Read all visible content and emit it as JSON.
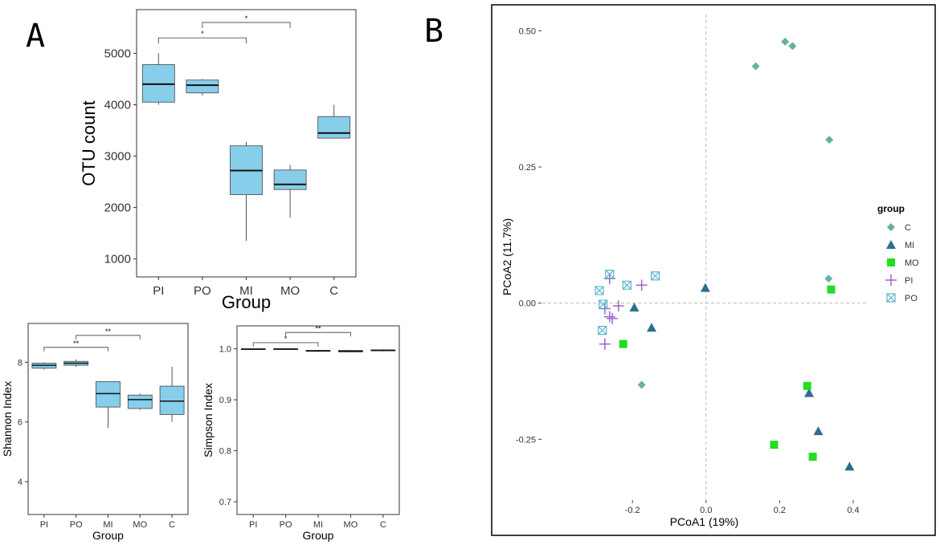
{
  "panel_labels": [
    "A",
    "B"
  ],
  "chart_data": [
    {
      "type": "box",
      "id": "otu",
      "categories": [
        "PI",
        "PO",
        "MI",
        "MO",
        "C"
      ],
      "xlabel": "Group",
      "ylabel": "OTU count",
      "ylim": [
        650,
        5850
      ],
      "yticks": [
        1000,
        2000,
        3000,
        4000,
        5000
      ],
      "boxes": [
        {
          "min": 4000,
          "q1": 4050,
          "median": 4400,
          "q3": 4780,
          "max": 5000
        },
        {
          "min": 4180,
          "q1": 4230,
          "median": 4380,
          "q3": 4480,
          "max": 4500
        },
        {
          "min": 1350,
          "q1": 2250,
          "median": 2720,
          "q3": 3200,
          "max": 3280
        },
        {
          "min": 1800,
          "q1": 2350,
          "median": 2450,
          "q3": 2730,
          "max": 2830
        },
        {
          "min": 3350,
          "q1": 3350,
          "median": 3450,
          "q3": 3770,
          "max": 4000
        }
      ],
      "significance": [
        {
          "from": "PI",
          "to": "MI",
          "label": "*",
          "y": 5300
        },
        {
          "from": "PO",
          "to": "MO",
          "label": "*",
          "y": 5600
        }
      ]
    },
    {
      "type": "box",
      "id": "shannon",
      "categories": [
        "PI",
        "PO",
        "MI",
        "MO",
        "C"
      ],
      "xlabel": "Group",
      "ylabel": "Shannon Index",
      "ylim": [
        2.9,
        9.3
      ],
      "yticks": [
        4,
        6,
        8
      ],
      "boxes": [
        {
          "min": 7.75,
          "q1": 7.8,
          "median": 7.9,
          "q3": 7.97,
          "max": 8.0
        },
        {
          "min": 7.85,
          "q1": 7.9,
          "median": 7.97,
          "q3": 8.03,
          "max": 8.1
        },
        {
          "min": 5.8,
          "q1": 6.5,
          "median": 6.95,
          "q3": 7.35,
          "max": 7.35
        },
        {
          "min": 6.4,
          "q1": 6.45,
          "median": 6.75,
          "q3": 6.9,
          "max": 6.95
        },
        {
          "min": 6.0,
          "q1": 6.25,
          "median": 6.7,
          "q3": 7.2,
          "max": 7.85
        }
      ],
      "significance": [
        {
          "from": "PI",
          "to": "MI",
          "label": "**",
          "y": 8.5
        },
        {
          "from": "PO",
          "to": "MO",
          "label": "**",
          "y": 8.9
        }
      ]
    },
    {
      "type": "box",
      "id": "simpson",
      "categories": [
        "PI",
        "PO",
        "MI",
        "MO",
        "C"
      ],
      "xlabel": "Group",
      "ylabel": "Simpson Index",
      "ylim": [
        0.675,
        1.045
      ],
      "yticks": [
        0.7,
        0.8,
        0.9,
        1.0
      ],
      "ytick_labels": [
        "0.7",
        "0.8",
        "0.9",
        "1.0"
      ],
      "boxes": [
        {
          "min": 0.998,
          "q1": 0.999,
          "median": 0.9995,
          "q3": 1.0,
          "max": 1.0
        },
        {
          "min": 0.999,
          "q1": 0.9995,
          "median": 0.9998,
          "q3": 1.0,
          "max": 1.0
        },
        {
          "min": 0.994,
          "q1": 0.995,
          "median": 0.996,
          "q3": 0.997,
          "max": 0.998
        },
        {
          "min": 0.993,
          "q1": 0.994,
          "median": 0.995,
          "q3": 0.997,
          "max": 0.998
        },
        {
          "min": 0.995,
          "q1": 0.996,
          "median": 0.997,
          "q3": 0.998,
          "max": 0.999
        }
      ],
      "significance": [
        {
          "from": "PI",
          "to": "MI",
          "label": "*",
          "y": 1.012
        },
        {
          "from": "PO",
          "to": "MO",
          "label": "**",
          "y": 1.032
        }
      ]
    },
    {
      "type": "scatter",
      "id": "pcoa",
      "xlabel": "PCoA1 (19%)",
      "ylabel": "PCoA2 (11.7%)",
      "xlim": [
        -0.445,
        0.435
      ],
      "ylim": [
        -0.36,
        0.53
      ],
      "xticks": [
        -0.2,
        0.0,
        0.2,
        0.4
      ],
      "xtick_labels": [
        "-0.2",
        "0.0",
        "0.2",
        "0.4"
      ],
      "yticks": [
        -0.25,
        0.0,
        0.25,
        0.5
      ],
      "ytick_labels": [
        "-0.25",
        "0.00",
        "0.25",
        "0.50"
      ],
      "legend": {
        "title": "group",
        "position": "right"
      },
      "series": [
        {
          "name": "C",
          "shape": "diamond",
          "color": "#66b2a0",
          "points": [
            [
              0.215,
              0.48
            ],
            [
              0.235,
              0.472
            ],
            [
              0.135,
              0.435
            ],
            [
              0.335,
              0.3
            ],
            [
              0.333,
              0.045
            ],
            [
              -0.175,
              -0.15
            ]
          ]
        },
        {
          "name": "MI",
          "shape": "triangle",
          "color": "#2e6e8e",
          "points": [
            [
              -0.002,
              0.028
            ],
            [
              -0.195,
              -0.008
            ],
            [
              -0.148,
              -0.045
            ],
            [
              0.28,
              -0.165
            ],
            [
              0.305,
              -0.235
            ],
            [
              0.39,
              -0.3
            ]
          ]
        },
        {
          "name": "MO",
          "shape": "square",
          "color": "#22dd22",
          "points": [
            [
              0.34,
              0.025
            ],
            [
              -0.225,
              -0.075
            ],
            [
              0.275,
              -0.152
            ],
            [
              0.185,
              -0.26
            ],
            [
              0.29,
              -0.282
            ]
          ]
        },
        {
          "name": "PI",
          "shape": "plus",
          "color": "#9966cc",
          "points": [
            [
              -0.262,
              0.045
            ],
            [
              -0.175,
              0.033
            ],
            [
              -0.275,
              -0.01
            ],
            [
              -0.238,
              -0.005
            ],
            [
              -0.262,
              -0.025
            ],
            [
              -0.255,
              -0.028
            ],
            [
              -0.275,
              -0.075
            ]
          ]
        },
        {
          "name": "PO",
          "shape": "squarecross",
          "color": "#5ab4cc",
          "points": [
            [
              -0.262,
              0.053
            ],
            [
              -0.138,
              0.05
            ],
            [
              -0.215,
              0.033
            ],
            [
              -0.29,
              0.023
            ],
            [
              -0.28,
              -0.002
            ],
            [
              -0.282,
              -0.05
            ]
          ]
        }
      ]
    }
  ]
}
